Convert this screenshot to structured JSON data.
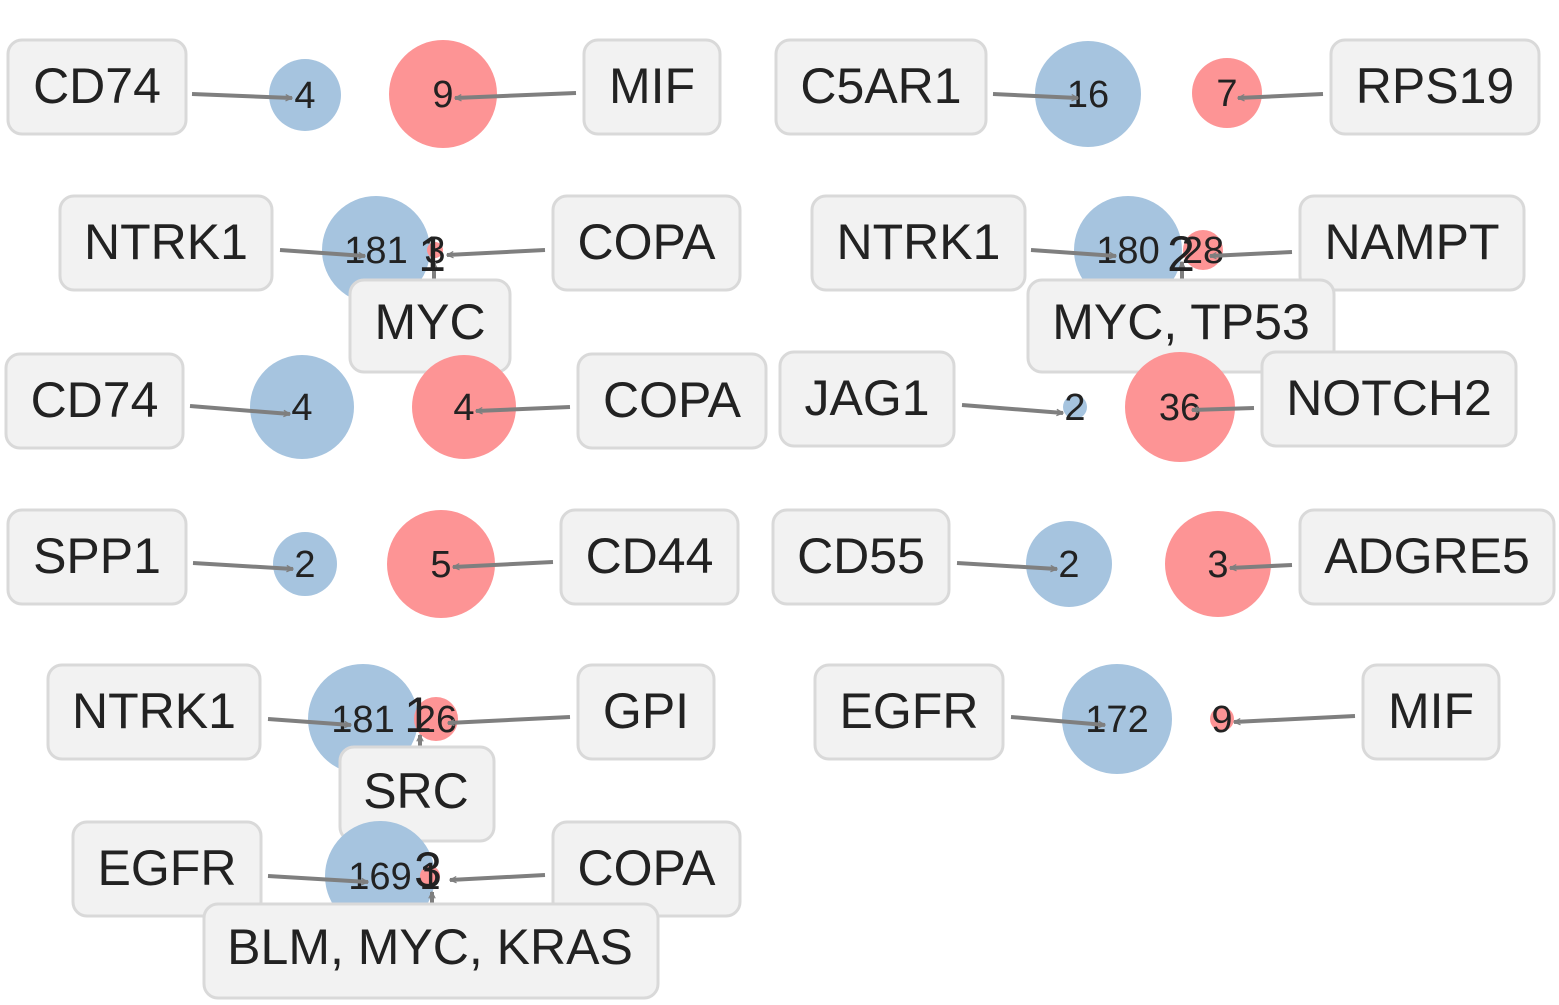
{
  "colors": {
    "receptor_node": "#a6c4df",
    "ligand_node": "#fd9495",
    "gene_node": "#fd9495",
    "label_box_fill": "#f2f2f2",
    "label_box_stroke": "#d9d9d9",
    "arrow": "#7f7f7f"
  },
  "panels": [
    {
      "receptor": "CD74",
      "receptor_count": "4",
      "ligand": "MIF",
      "ligand_count": "9"
    },
    {
      "receptor": "C5AR1",
      "receptor_count": "16",
      "ligand": "RPS19",
      "ligand_count": "7"
    },
    {
      "receptor": "NTRK1",
      "receptor_count": "181",
      "ligand": "COPA",
      "ligand_count": "3",
      "genes": "MYC",
      "gene_count": "1"
    },
    {
      "receptor": "NTRK1",
      "receptor_count": "180",
      "ligand": "NAMPT",
      "ligand_count": "28",
      "genes": "MYC, TP53",
      "gene_count": "2"
    },
    {
      "receptor": "CD74",
      "receptor_count": "4",
      "ligand": "COPA",
      "ligand_count": "4"
    },
    {
      "receptor": "JAG1",
      "receptor_count": "2",
      "ligand": "NOTCH2",
      "ligand_count": "36"
    },
    {
      "receptor": "SPP1",
      "receptor_count": "2",
      "ligand": "CD44",
      "ligand_count": "5"
    },
    {
      "receptor": "CD55",
      "receptor_count": "2",
      "ligand": "ADGRE5",
      "ligand_count": "3"
    },
    {
      "receptor": "NTRK1",
      "receptor_count": "181",
      "ligand": "GPI",
      "ligand_count": "26",
      "genes": "SRC",
      "gene_count": "1"
    },
    {
      "receptor": "EGFR",
      "receptor_count": "172",
      "ligand": "MIF",
      "ligand_count": "9"
    },
    {
      "receptor": "EGFR",
      "receptor_count": "169",
      "ligand": "COPA",
      "ligand_count": "1",
      "genes": "BLM, MYC, KRAS",
      "gene_count": "3"
    }
  ]
}
